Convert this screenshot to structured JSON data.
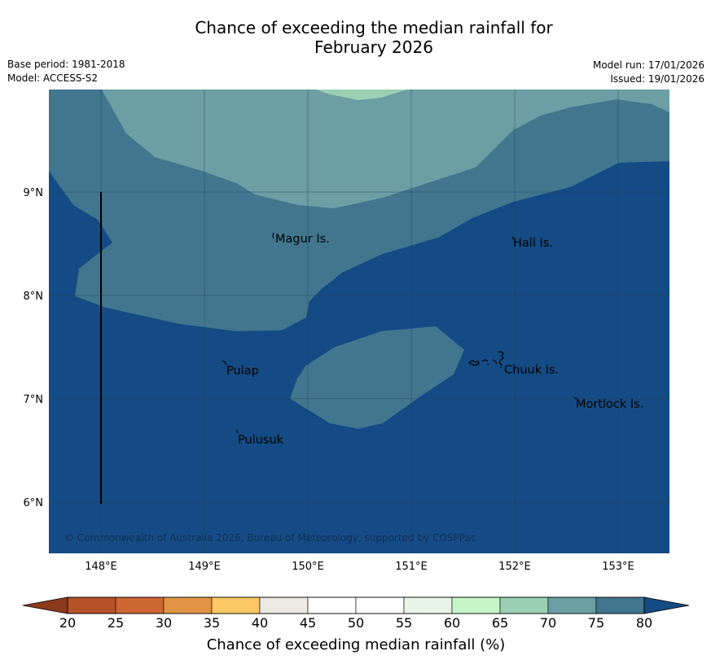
{
  "title_line1": "Chance of exceeding the median rainfall for",
  "title_line2": "February 2026",
  "base_period": "Base period: 1981-2018",
  "model": "Model: ACCESS-S2",
  "model_run": "Model run: 17/01/2026",
  "issued": "Issued: 19/01/2026",
  "copyright": "© Commonwealth of Australia 2026, Bureau of Meteorology, supported by COSPPac",
  "lat_ticks": [
    "9°N",
    "8°N",
    "7°N",
    "6°N"
  ],
  "lon_ticks": [
    "148°E",
    "149°E",
    "150°E",
    "151°E",
    "152°E",
    "153°E"
  ],
  "places": [
    "Magur Is.",
    "Hall Is.",
    "Pulap",
    "Chuuk Is.",
    "Mortlock Is.",
    "Pulusuk"
  ],
  "colorbar": {
    "title": "Chance of exceeding median rainfall (%)",
    "labels": [
      "20",
      "25",
      "30",
      "35",
      "40",
      "45",
      "50",
      "55",
      "60",
      "65",
      "70",
      "75",
      "80"
    ],
    "colors": [
      "#a8471f",
      "#b5522a",
      "#cc6633",
      "#e19544",
      "#fdc965",
      "#ece9e4",
      "#ffffff",
      "#ffffff",
      "#e8f4e8",
      "#c5f5c8",
      "#9bcfb4",
      "#6c9fa3",
      "#42768f"
    ],
    "low_color": "#8c3a1c",
    "high_color": "#154b84"
  },
  "map_colors": {
    "above_80": "#154b84",
    "range_75_80": "#42768f",
    "range_70_75": "#6c9fa3",
    "range_65_70": "#9bcfb4",
    "coast": "#000000"
  }
}
